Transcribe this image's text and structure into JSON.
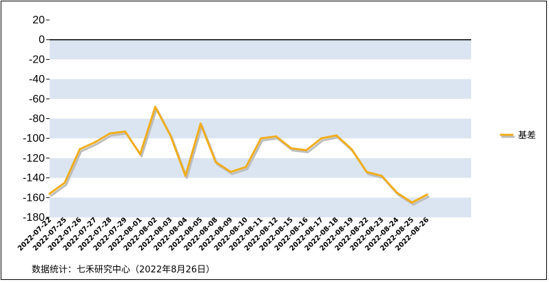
{
  "chart_data": {
    "type": "line",
    "title": "",
    "xlabel": "",
    "ylabel": "",
    "ylim": [
      -180,
      20
    ],
    "yticks": [
      20,
      0,
      -20,
      -40,
      -60,
      -80,
      -100,
      -120,
      -140,
      -160,
      -180
    ],
    "band_color": "#dbe5f1",
    "line_color": "#f0ad1c",
    "shadow_color": "#bdbdbd",
    "legend_position": "right",
    "categories": [
      "2022-07-22",
      "2022-07-25",
      "2022-07-26",
      "2022-07-27",
      "2022-07-28",
      "2022-07-29",
      "2022-08-01",
      "2022-08-02",
      "2022-08-03",
      "2022-08-04",
      "2022-08-05",
      "2022-08-08",
      "2022-08-09",
      "2022-08-10",
      "2022-08-11",
      "2022-08-12",
      "2022-08-15",
      "2022-08-16",
      "2022-08-17",
      "2022-08-18",
      "2022-08-19",
      "2022-08-22",
      "2022-08-23",
      "2022-08-24",
      "2022-08-25",
      "2022-08-26"
    ],
    "series": [
      {
        "name": "基差",
        "values": [
          -156,
          -145,
          -111,
          -104,
          -95,
          -93,
          -116,
          -68,
          -97,
          -138,
          -85,
          -124,
          -134,
          -129,
          -100,
          -98,
          -110,
          -112,
          -100,
          -97,
          -111,
          -134,
          -138,
          -155,
          -165,
          -157
        ]
      }
    ]
  },
  "source_note": "数据统计：七禾研究中心（2022年8月26日）"
}
